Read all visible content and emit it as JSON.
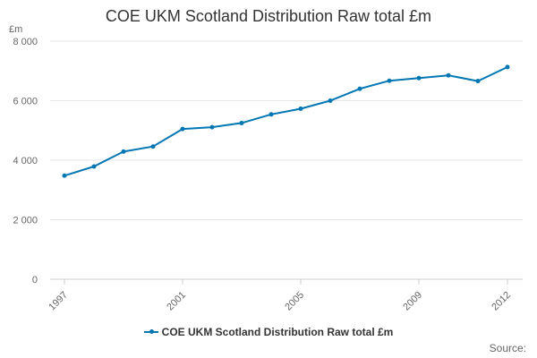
{
  "chart_data": {
    "type": "line",
    "title": "COE UKM Scotland Distribution Raw total £m",
    "ylabel": "£m",
    "xlabel": "",
    "x": [
      1997,
      1998,
      1999,
      2000,
      2001,
      2002,
      2003,
      2004,
      2005,
      2006,
      2007,
      2008,
      2009,
      2010,
      2011,
      2012
    ],
    "series": [
      {
        "name": "COE UKM Scotland Distribution Raw total £m",
        "values": [
          3480,
          3790,
          4290,
          4460,
          5050,
          5110,
          5250,
          5540,
          5730,
          6000,
          6400,
          6670,
          6760,
          6850,
          6660,
          7130
        ]
      }
    ],
    "ylim": [
      0,
      8000
    ],
    "yticks": [
      0,
      2000,
      4000,
      6000,
      8000
    ],
    "ytick_labels": [
      "0",
      "2 000",
      "4 000",
      "6 000",
      "8 000"
    ],
    "xticks": [
      1997,
      2001,
      2005,
      2009,
      2012
    ],
    "xtick_labels": [
      "1997",
      "2001",
      "2005",
      "2009",
      "2012"
    ],
    "grid": true,
    "legend": "bottom-center",
    "color": "#0077b3"
  },
  "source_label": "Source:"
}
